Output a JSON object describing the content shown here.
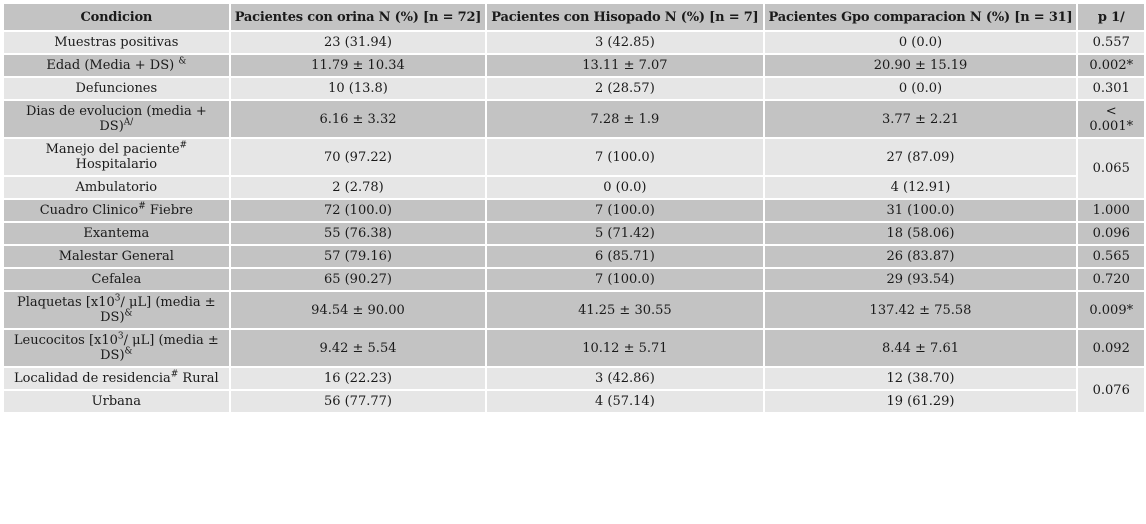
{
  "colors": {
    "page_bg": "#ffffff",
    "header_bg": "#c3c3c3",
    "row_gray_bg": "#c3c3c3",
    "row_light_bg": "#e6e6e6",
    "text": "#1a1a1a"
  },
  "table": {
    "columns": [
      "Condicion",
      "Pacientes con orina N (%) [n = 72]",
      "Pacientes con Hisopado N (%) [n = 7]",
      "Pacientes Gpo comparacion N (%) [n = 31]",
      "p 1/"
    ],
    "rows": [
      {
        "label": {
          "pre": "Muestras positivas"
        },
        "orina": "23 (31.94)",
        "hisopado": "3 (42.85)",
        "comparacion": "0 (0.0)",
        "p": "0.557",
        "p_rowspan": 1,
        "shade": "light"
      },
      {
        "label": {
          "pre": "Edad (Media + DS) ",
          "sup1": "&"
        },
        "orina": "11.79 ± 10.34",
        "hisopado": "13.11 ± 7.07",
        "comparacion": "20.90 ± 15.19",
        "p": "0.002*",
        "p_rowspan": 1,
        "shade": "gray"
      },
      {
        "label": {
          "pre": "Defunciones"
        },
        "orina": "10 (13.8)",
        "hisopado": "2 (28.57)",
        "comparacion": "0 (0.0)",
        "p": "0.301",
        "p_rowspan": 1,
        "shade": "light"
      },
      {
        "label": {
          "pre": "Dias de evolucion (media + DS)",
          "sup1": "A/"
        },
        "orina": "6.16 ± 3.32",
        "hisopado": "7.28 ± 1.9",
        "comparacion": "3.77 ± 2.21",
        "p": "< 0.001*",
        "p_rowspan": 1,
        "shade": "gray"
      },
      {
        "label": {
          "pre": "Manejo del paciente",
          "sup1": "#",
          "mid": " Hospitalario"
        },
        "orina": "70 (97.22)",
        "hisopado": "7 (100.0)",
        "comparacion": "27 (87.09)",
        "p": "0.065",
        "p_rowspan": 2,
        "shade": "light"
      },
      {
        "label": {
          "pre": "Ambulatorio"
        },
        "orina": "2 (2.78)",
        "hisopado": "0 (0.0)",
        "comparacion": "4 (12.91)",
        "p": null,
        "shade": "light"
      },
      {
        "label": {
          "pre": "Cuadro Clinico",
          "sup1": "#",
          "mid": " Fiebre"
        },
        "orina": "72 (100.0)",
        "hisopado": "7 (100.0)",
        "comparacion": "31 (100.0)",
        "p": "1.000",
        "p_rowspan": 1,
        "shade": "gray"
      },
      {
        "label": {
          "pre": "Exantema"
        },
        "orina": "55 (76.38)",
        "hisopado": "5 (71.42)",
        "comparacion": "18 (58.06)",
        "p": "0.096",
        "p_rowspan": 1,
        "shade": "gray"
      },
      {
        "label": {
          "pre": "Malestar General"
        },
        "orina": "57 (79.16)",
        "hisopado": "6 (85.71)",
        "comparacion": "26 (83.87)",
        "p": "0.565",
        "p_rowspan": 1,
        "shade": "gray"
      },
      {
        "label": {
          "pre": "Cefalea"
        },
        "orina": "65 (90.27)",
        "hisopado": "7 (100.0)",
        "comparacion": "29 (93.54)",
        "p": "0.720",
        "p_rowspan": 1,
        "shade": "gray"
      },
      {
        "label": {
          "pre": "Plaquetas [x10",
          "sup1": "3",
          "mid": "/ μL] (media ± DS)",
          "sup2": "&"
        },
        "orina": "94.54 ± 90.00",
        "hisopado": "41.25 ± 30.55",
        "comparacion": "137.42 ± 75.58",
        "p": "0.009*",
        "p_rowspan": 1,
        "shade": "gray"
      },
      {
        "label": {
          "pre": "Leucocitos [x10",
          "sup1": "3",
          "mid": "/ μL] (media ± DS)",
          "sup2": "&"
        },
        "orina": "9.42 ± 5.54",
        "hisopado": "10.12 ± 5.71",
        "comparacion": "8.44 ± 7.61",
        "p": "0.092",
        "p_rowspan": 1,
        "shade": "gray"
      },
      {
        "label": {
          "pre": "Localidad de residencia",
          "sup1": "#",
          "mid": " Rural"
        },
        "orina": "16 (22.23)",
        "hisopado": "3 (42.86)",
        "comparacion": "12 (38.70)",
        "p": "0.076",
        "p_rowspan": 2,
        "shade": "light"
      },
      {
        "label": {
          "pre": "Urbana"
        },
        "orina": "56 (77.77)",
        "hisopado": "4 (57.14)",
        "comparacion": "19 (61.29)",
        "p": null,
        "shade": "light"
      }
    ]
  }
}
